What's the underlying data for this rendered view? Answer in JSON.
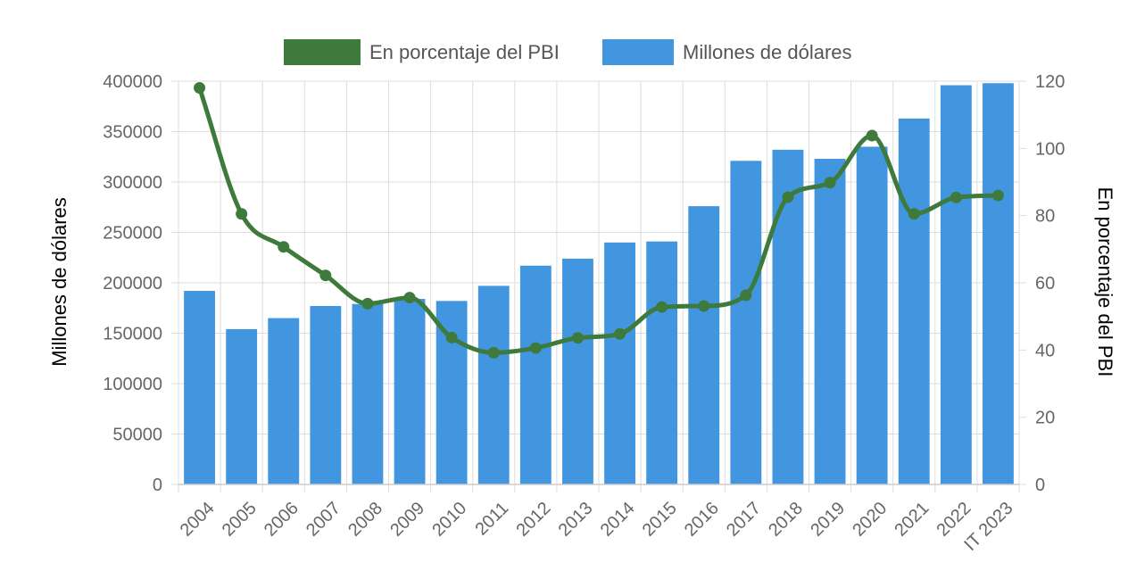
{
  "chart_data": {
    "type": "bar",
    "categories": [
      "2004",
      "2005",
      "2006",
      "2007",
      "2008",
      "2009",
      "2010",
      "2011",
      "2012",
      "2013",
      "2014",
      "2015",
      "2016",
      "2017",
      "2018",
      "2019",
      "2020",
      "2021",
      "2022",
      "IT 2023"
    ],
    "series": [
      {
        "name": "Millones de dólares",
        "type": "bar",
        "axis": "left",
        "color": "#4296e0",
        "values": [
          192000,
          154000,
          165000,
          177000,
          179000,
          184000,
          182000,
          197000,
          217000,
          224000,
          240000,
          241000,
          276000,
          321000,
          332000,
          323000,
          335000,
          363000,
          396000,
          398000
        ]
      },
      {
        "name": "En porcentaje del PBI",
        "type": "line",
        "axis": "right",
        "color": "#3e7a3b",
        "values": [
          118,
          80.5,
          70.7,
          62.2,
          53.8,
          55.6,
          43.7,
          39.2,
          40.6,
          43.6,
          44.8,
          52.8,
          53.1,
          56.3,
          85.5,
          89.8,
          103.8,
          80.5,
          85.4,
          86
        ]
      }
    ],
    "ylabel": "Millones de dólares",
    "y2label": "En porcentaje del PBI",
    "ylim": [
      0,
      400000
    ],
    "y2lim": [
      0,
      120
    ],
    "yticks": [
      "0",
      "50000",
      "100000",
      "150000",
      "200000",
      "250000",
      "300000",
      "350000",
      "400000"
    ],
    "y2ticks": [
      "0",
      "20",
      "40",
      "60",
      "80",
      "100",
      "120"
    ],
    "grid": true,
    "legend_position": "top-center",
    "legend": [
      {
        "label": "En porcentaje del PBI",
        "color": "#3e7a3b"
      },
      {
        "label": "Millones de dólares",
        "color": "#4296e0"
      }
    ]
  }
}
